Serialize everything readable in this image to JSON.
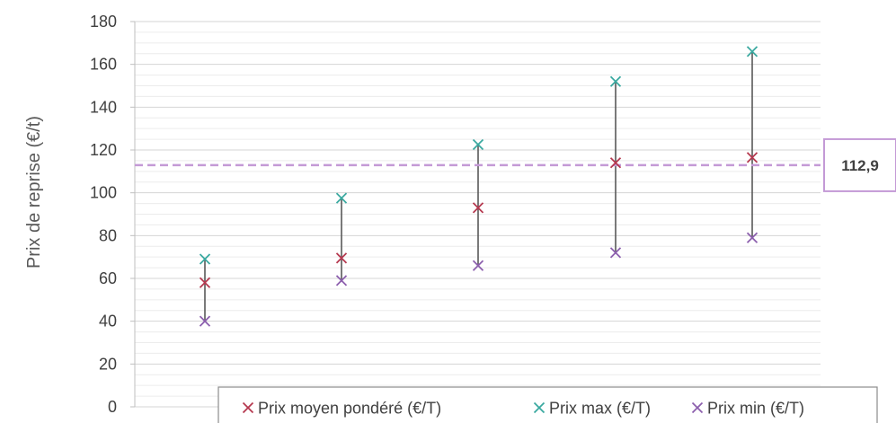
{
  "chart_data": {
    "type": "scatter",
    "title": "",
    "xlabel": "",
    "ylabel": "Prix de reprise (€/t)",
    "ylim": [
      0,
      180
    ],
    "yticks": [
      0,
      20,
      40,
      60,
      80,
      100,
      120,
      140,
      160,
      180
    ],
    "grid": true,
    "x": [
      1,
      2,
      3,
      4,
      5
    ],
    "series": [
      {
        "name": "Prix moyen pondéré (€/T)",
        "color": "#b5384f",
        "values": [
          58,
          69.5,
          93,
          114,
          116.5
        ]
      },
      {
        "name": "Prix max (€/T)",
        "color": "#3aa9a0",
        "values": [
          69,
          97.5,
          122.5,
          152,
          166
        ]
      },
      {
        "name": "Prix min (€/T)",
        "color": "#8c5fad",
        "values": [
          40,
          59,
          66,
          72,
          79
        ]
      }
    ],
    "reference_line": {
      "value": 112.9,
      "label": "112,9",
      "color": "#c49ad6"
    },
    "legend_position": "bottom-right",
    "marker": "×"
  }
}
